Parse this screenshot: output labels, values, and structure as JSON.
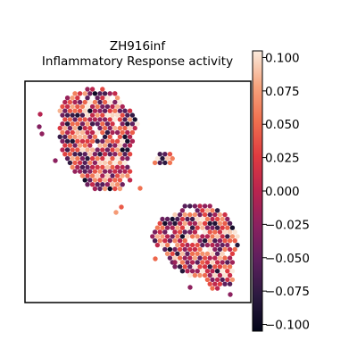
{
  "chart_data": {
    "type": "heatmap",
    "title_lines": [
      "ZH916inf",
      "Inflammatory Response activity"
    ],
    "xlabel": "",
    "ylabel": "",
    "grid": false,
    "colorbar": {
      "cmap": "rocket",
      "range": [
        -0.105,
        0.105
      ],
      "ticks": [
        0.1,
        0.075,
        0.05,
        0.025,
        0.0,
        -0.025,
        -0.05,
        -0.075,
        -0.1
      ],
      "tick_labels": [
        "0.100",
        "0.075",
        "0.050",
        "0.025",
        "0.000",
        "−0.025",
        "−0.050",
        "−0.075",
        "−0.100"
      ]
    }
  }
}
